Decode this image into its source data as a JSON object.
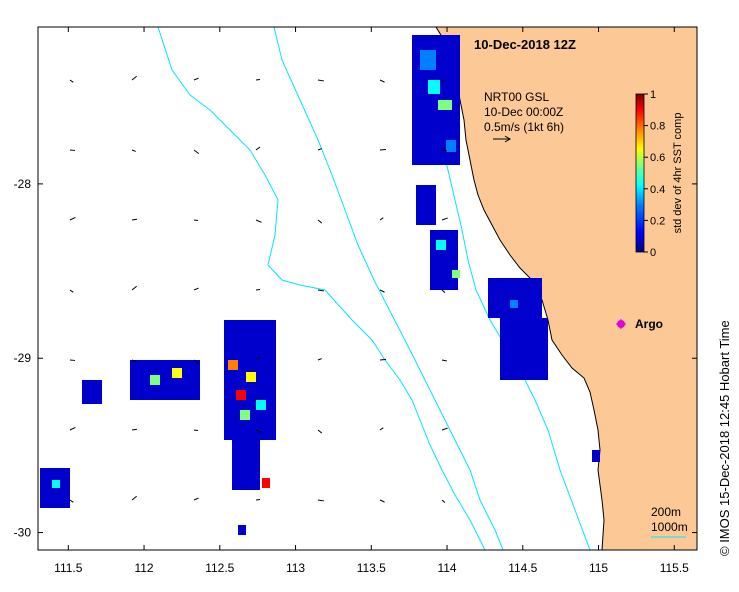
{
  "map": {
    "title": "10-Dec-2018 12Z",
    "x_ticks": [
      "111.5",
      "112",
      "112.5",
      "113",
      "113.5",
      "114",
      "114.5",
      "115",
      "115.5"
    ],
    "x_tick_values": [
      111.5,
      112,
      112.5,
      113,
      113.5,
      114,
      114.5,
      115,
      115.5
    ],
    "y_ticks": [
      "-28",
      "-29",
      "-30"
    ],
    "y_tick_values": [
      -28,
      -29,
      -30
    ],
    "lon_range": [
      111.3,
      115.65
    ],
    "lat_range": [
      -30.1,
      -27.1
    ]
  },
  "current_legend": {
    "line1": "NRT00 GSL",
    "line2": "10-Dec 00:00Z",
    "line3": "0.5m/s (1kt 6h)"
  },
  "colorbar": {
    "label": "std dev of 4hr SST comp",
    "ticks": [
      "0",
      "0.2",
      "0.4",
      "0.6",
      "0.8",
      "1"
    ],
    "tick_values": [
      0,
      0.2,
      0.4,
      0.6,
      0.8,
      1
    ],
    "colors": [
      "#00007f",
      "#0000ff",
      "#007fff",
      "#00ffff",
      "#7fff7f",
      "#ffff00",
      "#ff7f00",
      "#ff0000",
      "#7f0000"
    ]
  },
  "argo": {
    "label": "Argo",
    "color": "#e000e0"
  },
  "contours": {
    "depth1": "200m",
    "depth2": "1000m",
    "color": "#00e5ff"
  },
  "credit": "© IMOS 15-Dec-2018 12:45 Hobart Time",
  "colors": {
    "land": "#fcc996",
    "water": "#ffffff",
    "axis": "#000000"
  }
}
